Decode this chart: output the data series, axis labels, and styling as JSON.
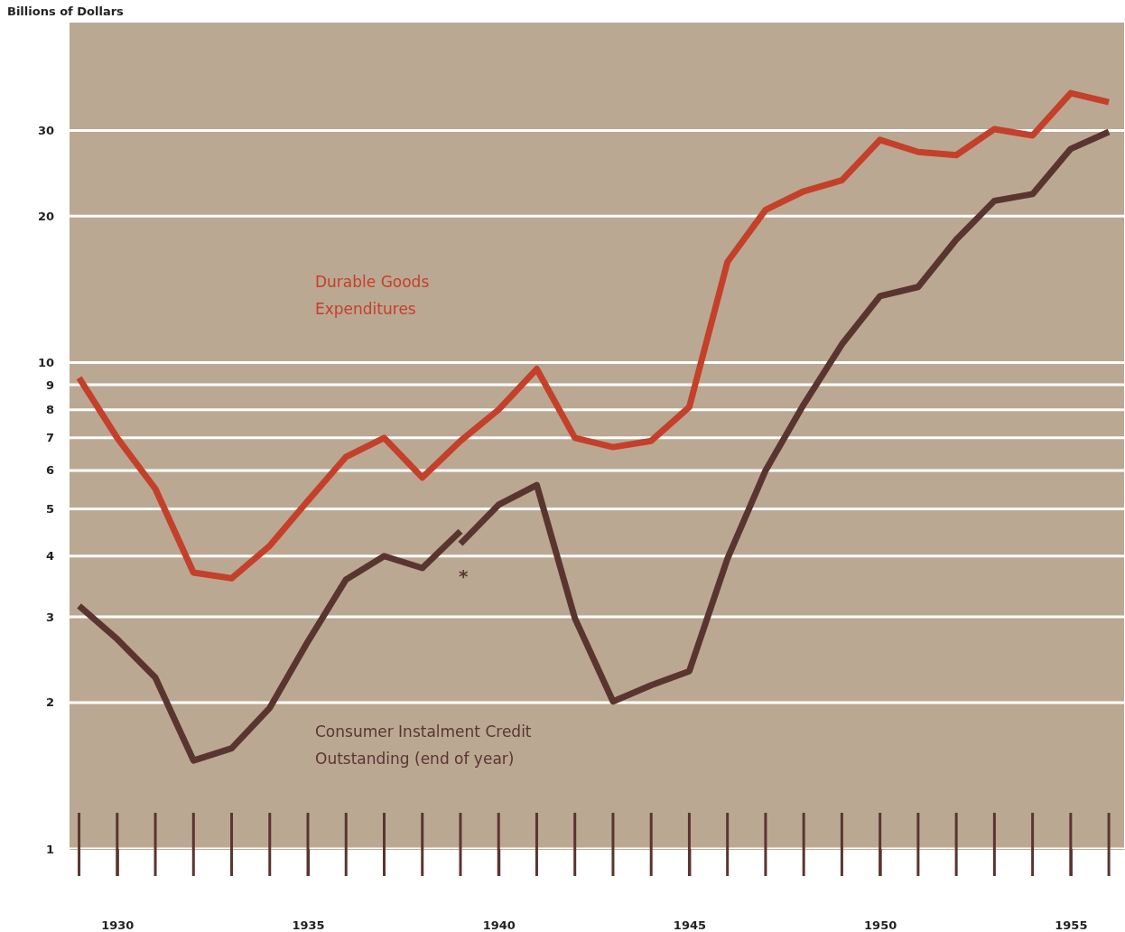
{
  "chart_data": {
    "type": "line",
    "ylabel": "Billions of Dollars",
    "log": true,
    "grid": "y",
    "line_style": "solid",
    "xlim": [
      1928.75,
      1956.4
    ],
    "xticks": [
      1930,
      1935,
      1940,
      1945,
      1950,
      1955
    ],
    "ylim": [
      1,
      50
    ],
    "yticks": [
      1,
      2,
      3,
      4,
      5,
      6,
      7,
      8,
      9,
      10,
      20,
      30
    ],
    "series": [
      {
        "name": "Durable Goods Expenditures",
        "color": "#c4402a",
        "x": [
          1929,
          1930,
          1931,
          1932,
          1933,
          1934,
          1935,
          1936,
          1937,
          1938,
          1939,
          1940,
          1941,
          1942,
          1943,
          1944,
          1945,
          1946,
          1947,
          1948,
          1949,
          1950,
          1951,
          1952,
          1953,
          1954,
          1955,
          1956
        ],
        "values": [
          9.3,
          7.0,
          5.5,
          3.7,
          3.6,
          4.2,
          5.2,
          6.4,
          7.0,
          5.8,
          6.9,
          8.0,
          9.7,
          7.0,
          6.7,
          6.9,
          8.1,
          16.1,
          20.6,
          22.5,
          23.7,
          28.7,
          27.1,
          26.7,
          30.2,
          29.3,
          35.8,
          34.3
        ]
      },
      {
        "name": "Consumer Instalment Credit Outstanding (end of year)",
        "color": "#5a3530",
        "x": [
          1929,
          1930,
          1931,
          1932,
          1933,
          1934,
          1935,
          1936,
          1937,
          1938,
          1939
        ],
        "values": [
          3.16,
          2.7,
          2.25,
          1.52,
          1.61,
          1.95,
          2.67,
          3.58,
          4.0,
          3.78,
          4.5
        ]
      },
      {
        "color": "#5a3530",
        "x": [
          1939,
          1940,
          1941,
          1942,
          1943,
          1944,
          1945,
          1946,
          1947,
          1948,
          1949,
          1950,
          1951,
          1952,
          1953,
          1954,
          1955,
          1956
        ],
        "values": [
          4.24,
          5.1,
          5.6,
          2.98,
          2.01,
          2.17,
          2.32,
          3.95,
          6.0,
          8.2,
          10.9,
          13.7,
          14.3,
          17.9,
          21.5,
          22.2,
          27.5,
          29.8
        ]
      }
    ],
    "annotations": [
      "*"
    ]
  }
}
